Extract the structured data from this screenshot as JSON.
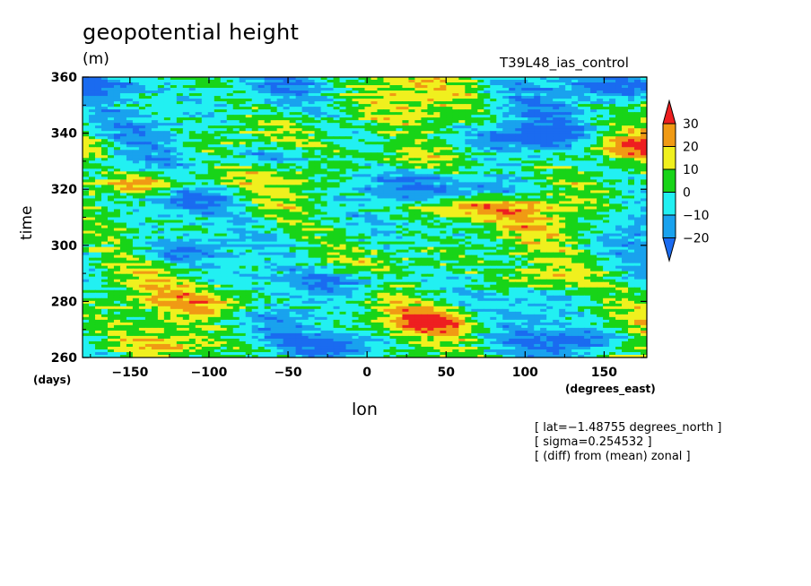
{
  "chart_data": {
    "type": "heatmap",
    "title": "geopotential height",
    "units": "(m)",
    "run_label": "T39L48_ias_control",
    "xlabel": "lon",
    "ylabel": "time",
    "x_units": "(degrees_east)",
    "y_units": "(days)",
    "xlim": [
      -180,
      177
    ],
    "ylim": [
      260,
      360
    ],
    "x_ticks": [
      -150,
      -100,
      -50,
      0,
      50,
      100,
      150
    ],
    "y_ticks": [
      260,
      280,
      300,
      320,
      340,
      360
    ],
    "colorbar": {
      "levels": [
        -20,
        -10,
        0,
        10,
        20,
        30
      ],
      "level_labels": [
        "−20",
        "−10",
        "0",
        "10",
        "20",
        "30"
      ],
      "colors": [
        "#1a6bf0",
        "#19a2ee",
        "#22f0f2",
        "#18d418",
        "#f0f01e",
        "#f09a14",
        "#ee1f20"
      ]
    },
    "features": [
      {
        "lon": -140,
        "time": 322,
        "value": 28
      },
      {
        "lon": 25,
        "time": 330,
        "value": 25
      },
      {
        "lon": 50,
        "time": 313,
        "value": 28
      },
      {
        "lon": 45,
        "time": 273,
        "value": 30
      },
      {
        "lon": -90,
        "time": 280,
        "value": 22
      },
      {
        "lon": -130,
        "time": 264,
        "value": 25
      },
      {
        "lon": 110,
        "time": 288,
        "value": 22
      },
      {
        "lon": 165,
        "time": 335,
        "value": 22
      },
      {
        "lon": -60,
        "time": 332,
        "value": -28
      },
      {
        "lon": -110,
        "time": 316,
        "value": -25
      },
      {
        "lon": 80,
        "time": 320,
        "value": -24
      },
      {
        "lon": 100,
        "time": 338,
        "value": -24
      },
      {
        "lon": -10,
        "time": 287,
        "value": -22
      },
      {
        "lon": -15,
        "time": 264,
        "value": -25
      },
      {
        "lon": 135,
        "time": 266,
        "value": -25
      },
      {
        "lon": 160,
        "time": 357,
        "value": -25
      },
      {
        "lon": -120,
        "time": 297,
        "value": -22
      },
      {
        "lon": -160,
        "time": 357,
        "value": -22
      }
    ],
    "notes": [
      "[ lat=−1.48755 degrees_north ]",
      "[ sigma=0.254532 ]",
      "[ (diff) from (mean) zonal ]"
    ]
  }
}
